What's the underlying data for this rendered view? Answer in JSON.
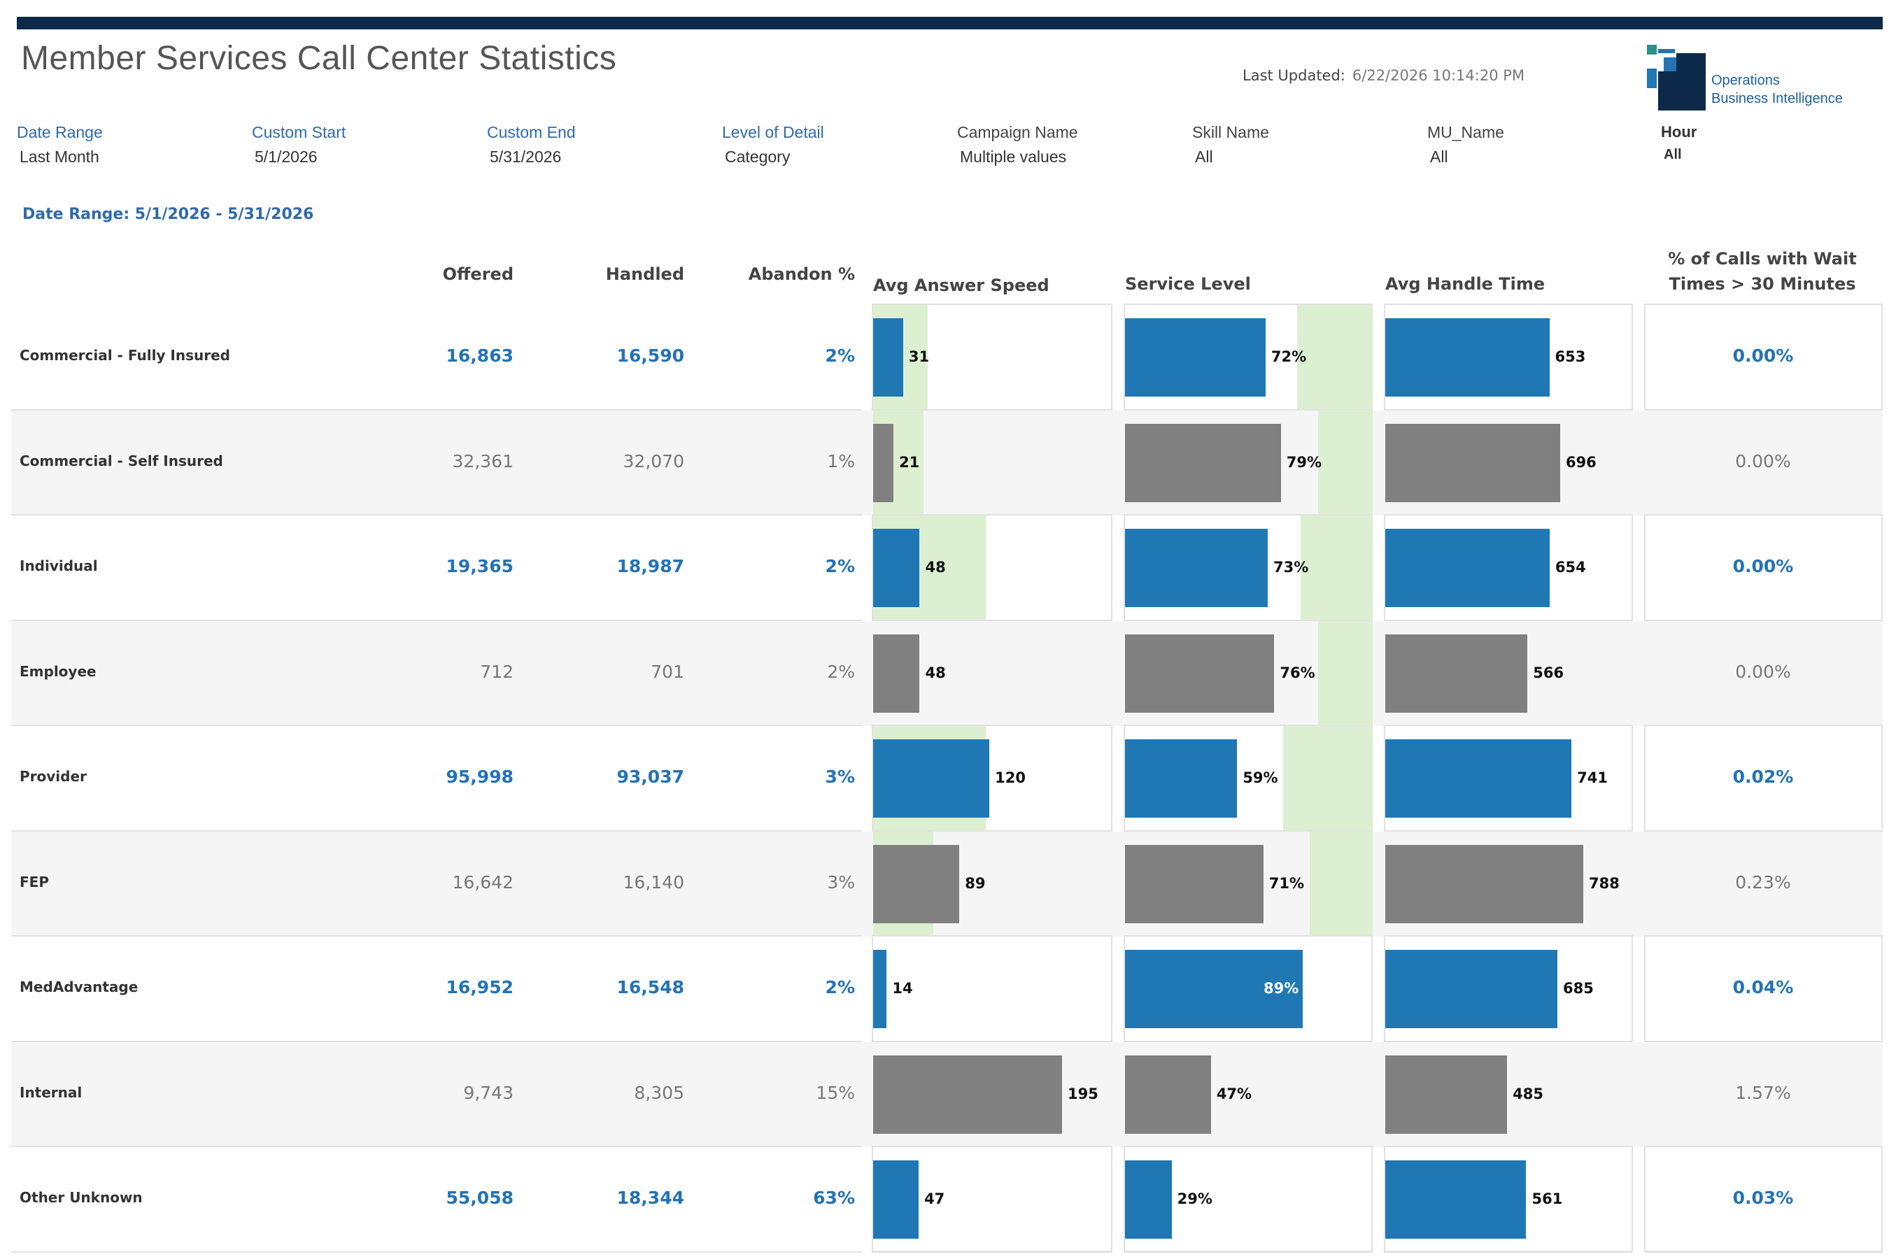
{
  "header": {
    "title": "Member Services Call Center Statistics",
    "last_updated_label": "Last Updated:",
    "last_updated_value": "6/22/2026 10:14:20 PM",
    "logo_line1": "Operations",
    "logo_line2": "Business Intelligence"
  },
  "filters": [
    {
      "label": "Date Range",
      "value": "Last Month"
    },
    {
      "label": "Custom Start",
      "value": "5/1/2026"
    },
    {
      "label": "Custom End",
      "value": "5/31/2026"
    },
    {
      "label": "Level of Detail",
      "value": "Category"
    },
    {
      "label": "Campaign Name",
      "value": "Multiple values"
    },
    {
      "label": "Skill Name",
      "value": "All"
    },
    {
      "label": "MU_Name",
      "value": "All"
    },
    {
      "label": "Hour",
      "value": "All"
    }
  ],
  "date_range_text": "Date Range: 5/1/2026 - 5/31/2026",
  "columns": {
    "offered": "Offered",
    "handled": "Handled",
    "abandon": "Abandon %",
    "asa": "Avg Answer Speed",
    "service_level": "Service Level",
    "aht": "Avg Handle Time",
    "wait": "% of Calls with Wait Times > 30 Minutes"
  },
  "colors": {
    "blue": "#1f78b4",
    "gray": "#808080",
    "target_band": "#dcefd1"
  },
  "rows": [
    {
      "category": "Commercial - Fully Insured",
      "offered": "16,863",
      "handled": "16,590",
      "abandon": "2%",
      "asa": 31,
      "sl": 72,
      "sl_label": "72%",
      "aht": 653,
      "wait": "0.00%",
      "asa_band": 36,
      "sl_band": [
        58,
        100
      ]
    },
    {
      "category": "Commercial - Self Insured",
      "offered": "32,361",
      "handled": "32,070",
      "abandon": "1%",
      "asa": 21,
      "sl": 79,
      "sl_label": "79%",
      "aht": 696,
      "wait": "0.00%",
      "asa_band": 32,
      "sl_band": [
        70,
        100
      ]
    },
    {
      "category": "Individual",
      "offered": "19,365",
      "handled": "18,987",
      "abandon": "2%",
      "asa": 48,
      "sl": 73,
      "sl_label": "73%",
      "aht": 654,
      "wait": "0.00%",
      "asa_band": 96,
      "sl_band": [
        60,
        100
      ]
    },
    {
      "category": "Employee",
      "offered": "712",
      "handled": "701",
      "abandon": "2%",
      "asa": 48,
      "sl": 76,
      "sl_label": "76%",
      "aht": 566,
      "wait": "0.00%",
      "asa_band": 0,
      "sl_band": [
        70,
        100
      ]
    },
    {
      "category": "Provider",
      "offered": "95,998",
      "handled": "93,037",
      "abandon": "3%",
      "asa": 120,
      "sl": 59,
      "sl_label": "59%",
      "aht": 741,
      "wait": "0.02%",
      "asa_band": 96,
      "sl_band": [
        50,
        100
      ]
    },
    {
      "category": "FEP",
      "offered": "16,642",
      "handled": "16,140",
      "abandon": "3%",
      "asa": 89,
      "sl": 71,
      "sl_label": "71%",
      "aht": 788,
      "wait": "0.23%",
      "asa_band": 42,
      "sl_band": [
        65,
        100
      ]
    },
    {
      "category": "MedAdvantage",
      "offered": "16,952",
      "handled": "16,548",
      "abandon": "2%",
      "asa": 14,
      "sl": 89,
      "sl_label": "89%",
      "aht": 685,
      "wait": "0.04%",
      "asa_band": 0,
      "sl_band": [
        0,
        0
      ]
    },
    {
      "category": "Internal",
      "offered": "9,743",
      "handled": "8,305",
      "abandon": "15%",
      "asa": 195,
      "sl": 47,
      "sl_label": "47%",
      "aht": 485,
      "wait": "1.57%",
      "asa_band": 0,
      "sl_band": [
        0,
        0
      ]
    },
    {
      "category": "Other Unknown",
      "offered": "55,058",
      "handled": "18,344",
      "abandon": "63%",
      "asa": 47,
      "sl": 29,
      "sl_label": "29%",
      "aht": 561,
      "wait": "0.03%",
      "asa_band": 0,
      "sl_band": [
        0,
        0
      ]
    }
  ]
}
